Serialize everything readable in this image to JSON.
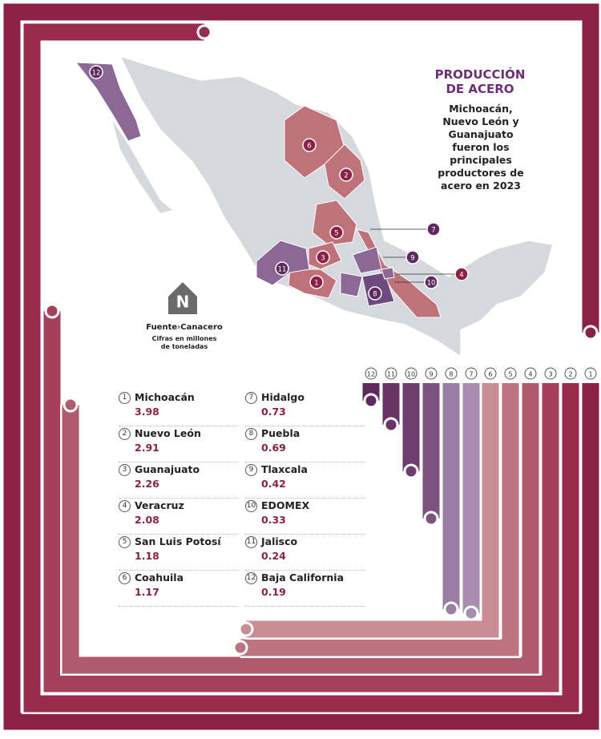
{
  "title": "PRODUCCIÓN DE ACERO",
  "subtitle": "Michoacán, Nuevo León y Guanajuato fueron los principales productores de acero en 2023",
  "logo": "N",
  "source_label": "Fuente",
  "source": "Canacero",
  "note": "Cifras en millones de toneladas",
  "states": [
    {
      "rank": 1,
      "name": "Michoacán",
      "value": 3.98
    },
    {
      "rank": 2,
      "name": "Nuevo León",
      "value": 2.91
    },
    {
      "rank": 3,
      "name": "Guanajuato",
      "value": 2.26
    },
    {
      "rank": 4,
      "name": "Veracruz",
      "value": 2.08
    },
    {
      "rank": 5,
      "name": "San Luis Potosí",
      "value": 1.18
    },
    {
      "rank": 6,
      "name": "Coahuila",
      "value": 1.17
    },
    {
      "rank": 7,
      "name": "Hidalgo",
      "value": 0.73
    },
    {
      "rank": 8,
      "name": "Puebla",
      "value": 0.69
    },
    {
      "rank": 9,
      "name": "Tlaxcala",
      "value": 0.42
    },
    {
      "rank": 10,
      "name": "EDOMEX",
      "value": 0.33
    },
    {
      "rank": 11,
      "name": "Jalisco",
      "value": 0.24
    },
    {
      "rank": 12,
      "name": "Baja California",
      "value": 0.19
    }
  ]
}
